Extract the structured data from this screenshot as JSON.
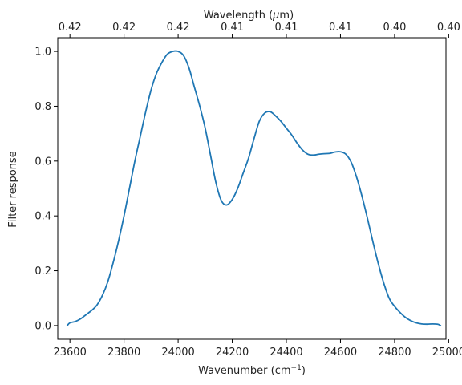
{
  "chart_data": {
    "type": "line",
    "xlabel": "Wavenumber (cm",
    "xlabel_sup": "−1",
    "xlabel_suffix": ")",
    "ylabel": "Filter response",
    "top_xlabel_prefix": "Wavelength (",
    "top_xlabel_mu": "μ",
    "top_xlabel_suffix": "m)",
    "xlim": [
      23555,
      24990
    ],
    "ylim": [
      -0.05,
      1.05
    ],
    "x_ticks": [
      23600,
      23800,
      24000,
      24200,
      24400,
      24600,
      24800,
      25000
    ],
    "y_ticks": [
      0.0,
      0.2,
      0.4,
      0.6,
      0.8,
      1.0
    ],
    "y_tick_labels": [
      "0.0",
      "0.2",
      "0.4",
      "0.6",
      "0.8",
      "1.0"
    ],
    "top_x_ticks": [
      23600,
      23800,
      24000,
      24200,
      24400,
      24600,
      24800,
      25000
    ],
    "top_x_tick_labels": [
      "0.42",
      "0.42",
      "0.42",
      "0.41",
      "0.41",
      "0.41",
      "0.40",
      "0.40"
    ],
    "grid": false,
    "series": [
      {
        "color": "#1f77b4",
        "x": [
          23590,
          23600,
          23620,
          23640,
          23660,
          23680,
          23700,
          23720,
          23740,
          23760,
          23780,
          23800,
          23820,
          23840,
          23860,
          23880,
          23900,
          23920,
          23940,
          23960,
          23980,
          24000,
          24020,
          24040,
          24060,
          24080,
          24100,
          24120,
          24140,
          24160,
          24180,
          24200,
          24220,
          24240,
          24260,
          24280,
          24300,
          24320,
          24340,
          24360,
          24380,
          24400,
          24420,
          24440,
          24460,
          24480,
          24500,
          24520,
          24540,
          24560,
          24580,
          24600,
          24620,
          24640,
          24660,
          24680,
          24700,
          24720,
          24740,
          24760,
          24780,
          24800,
          24820,
          24840,
          24860,
          24880,
          24900,
          24920,
          24940,
          24960,
          24970
        ],
        "y": [
          0.0,
          0.01,
          0.015,
          0.025,
          0.04,
          0.055,
          0.075,
          0.11,
          0.16,
          0.23,
          0.31,
          0.4,
          0.5,
          0.6,
          0.69,
          0.78,
          0.86,
          0.92,
          0.96,
          0.99,
          1.0,
          1.0,
          0.985,
          0.94,
          0.87,
          0.8,
          0.72,
          0.62,
          0.52,
          0.455,
          0.44,
          0.46,
          0.5,
          0.555,
          0.61,
          0.68,
          0.745,
          0.775,
          0.78,
          0.765,
          0.745,
          0.72,
          0.695,
          0.665,
          0.64,
          0.625,
          0.622,
          0.625,
          0.627,
          0.628,
          0.633,
          0.634,
          0.625,
          0.595,
          0.54,
          0.47,
          0.39,
          0.305,
          0.225,
          0.155,
          0.1,
          0.07,
          0.048,
          0.03,
          0.018,
          0.01,
          0.006,
          0.005,
          0.006,
          0.005,
          0.0
        ]
      }
    ]
  }
}
